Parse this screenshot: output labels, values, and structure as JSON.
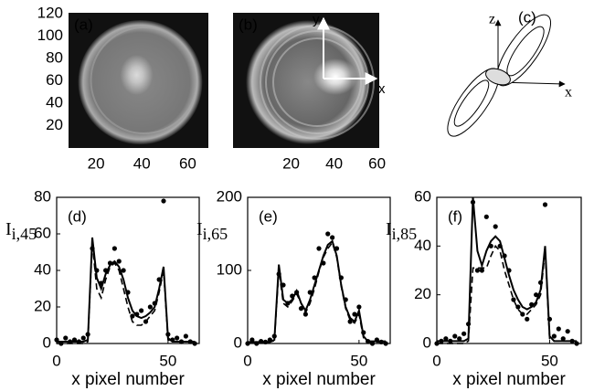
{
  "chart_data": [
    {
      "type": "image",
      "panel_label": "(a)",
      "xlim": [
        8,
        69
      ],
      "ylim": [
        0,
        121
      ],
      "xticks": [
        20,
        40,
        60
      ],
      "yticks": [
        20,
        40,
        60,
        80,
        100,
        120
      ]
    },
    {
      "type": "image",
      "panel_label": "(b)",
      "xlim": [
        -7,
        61
      ],
      "ylim": [
        0,
        121
      ],
      "xticks": [
        20,
        40,
        60
      ],
      "axis_labels": [
        "y",
        "x"
      ]
    },
    {
      "type": "line",
      "panel_label": "(d)",
      "ylabel": "I",
      "ylabel_sub": "i,45",
      "xlabel": "x pixel number",
      "xlim": [
        0,
        64
      ],
      "ylim": [
        0,
        80
      ],
      "xticks": [
        0,
        50
      ],
      "yticks": [
        0,
        20,
        40,
        60,
        80
      ],
      "x": [
        0,
        2,
        4,
        6,
        8,
        10,
        12,
        14,
        16,
        18,
        20,
        22,
        24,
        26,
        28,
        30,
        32,
        34,
        36,
        38,
        40,
        42,
        44,
        46,
        48,
        50,
        52,
        54,
        56,
        58,
        60,
        62
      ],
      "series": [
        {
          "style": "solid",
          "color": "#000",
          "values": [
            1,
            1,
            1,
            1,
            1,
            1,
            1,
            2,
            58,
            36,
            30,
            38,
            43,
            45,
            42,
            35,
            25,
            18,
            15,
            14,
            15,
            17,
            20,
            30,
            42,
            3,
            1,
            1,
            1,
            1,
            1,
            1
          ]
        },
        {
          "style": "dashed",
          "color": "#000",
          "values": [
            0,
            0,
            0,
            0,
            0,
            0,
            0,
            1,
            55,
            30,
            25,
            35,
            42,
            44,
            40,
            30,
            20,
            12,
            10,
            10,
            12,
            15,
            18,
            28,
            40,
            2,
            1,
            1,
            1,
            1,
            1,
            1
          ]
        },
        {
          "style": "points",
          "color": "#000",
          "values": [
            2,
            0,
            3,
            1,
            2,
            1,
            3,
            5,
            52,
            40,
            33,
            40,
            44,
            52,
            45,
            40,
            28,
            15,
            16,
            18,
            12,
            20,
            22,
            35,
            78,
            5,
            2,
            3,
            1,
            4,
            1,
            0
          ]
        }
      ]
    },
    {
      "type": "line",
      "panel_label": "(e)",
      "ylabel": "I",
      "ylabel_sub": "i,65",
      "xlabel": "x pixel number",
      "xlim": [
        0,
        64
      ],
      "ylim": [
        0,
        200
      ],
      "xticks": [
        0,
        50
      ],
      "yticks": [
        0,
        100,
        200
      ],
      "x": [
        0,
        2,
        4,
        6,
        8,
        10,
        12,
        14,
        16,
        18,
        20,
        22,
        24,
        26,
        28,
        30,
        32,
        34,
        36,
        38,
        40,
        42,
        44,
        46,
        48,
        50,
        52,
        54,
        56,
        58,
        60,
        62
      ],
      "series": [
        {
          "style": "solid",
          "color": "#000",
          "values": [
            2,
            2,
            2,
            2,
            2,
            2,
            5,
            108,
            60,
            55,
            60,
            72,
            55,
            45,
            60,
            80,
            100,
            120,
            135,
            140,
            120,
            80,
            50,
            35,
            30,
            45,
            10,
            3,
            3,
            3,
            3,
            3
          ]
        },
        {
          "style": "dashed",
          "color": "#000",
          "values": [
            2,
            2,
            2,
            2,
            2,
            2,
            4,
            100,
            55,
            50,
            58,
            68,
            55,
            42,
            55,
            75,
            98,
            118,
            130,
            138,
            118,
            78,
            48,
            32,
            28,
            40,
            8,
            2,
            2,
            2,
            2,
            2
          ]
        },
        {
          "style": "points",
          "color": "#000",
          "values": [
            0,
            5,
            0,
            3,
            2,
            5,
            10,
            95,
            80,
            55,
            65,
            70,
            48,
            40,
            70,
            90,
            130,
            110,
            150,
            145,
            130,
            90,
            60,
            30,
            40,
            50,
            15,
            3,
            0,
            5,
            2,
            0
          ]
        }
      ]
    },
    {
      "type": "line",
      "panel_label": "(f)",
      "ylabel": "I",
      "ylabel_sub": "i,85",
      "xlabel": "x pixel number",
      "xlim": [
        0,
        64
      ],
      "ylim": [
        0,
        60
      ],
      "xticks": [
        0,
        50
      ],
      "yticks": [
        0,
        20,
        40,
        60
      ],
      "x": [
        0,
        2,
        4,
        6,
        8,
        10,
        12,
        14,
        16,
        18,
        20,
        22,
        24,
        26,
        28,
        30,
        32,
        34,
        36,
        38,
        40,
        42,
        44,
        46,
        48,
        50,
        52,
        54,
        56,
        58,
        60,
        62
      ],
      "series": [
        {
          "style": "solid",
          "color": "#000",
          "values": [
            1,
            1,
            1,
            1,
            1,
            1,
            1,
            2,
            60,
            38,
            32,
            38,
            42,
            44,
            42,
            35,
            28,
            22,
            18,
            15,
            14,
            15,
            17,
            22,
            40,
            3,
            1,
            1,
            1,
            1,
            1,
            1
          ]
        },
        {
          "style": "dashed",
          "color": "#000",
          "values": [
            0,
            0,
            0,
            0,
            0,
            0,
            0,
            1,
            31,
            31,
            31,
            31,
            36,
            40,
            38,
            30,
            24,
            18,
            14,
            12,
            12,
            14,
            16,
            20,
            38,
            2,
            1,
            1,
            1,
            1,
            1,
            1
          ]
        },
        {
          "style": "points",
          "color": "#000",
          "values": [
            0,
            1,
            2,
            1,
            3,
            2,
            4,
            8,
            58,
            30,
            30,
            52,
            40,
            48,
            40,
            36,
            30,
            18,
            15,
            12,
            10,
            16,
            20,
            25,
            57,
            10,
            3,
            6,
            2,
            5,
            1,
            0
          ]
        }
      ]
    }
  ],
  "diagram": {
    "panel_label": "(c)",
    "axis_labels": [
      "z",
      "x"
    ]
  }
}
